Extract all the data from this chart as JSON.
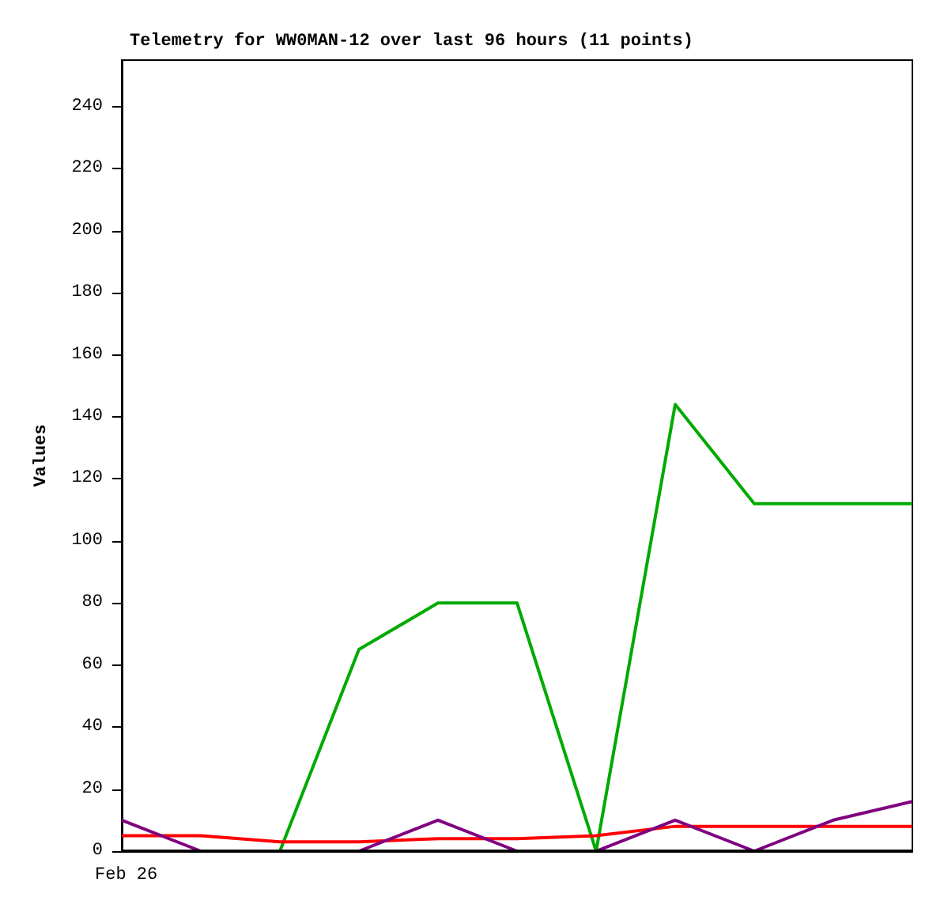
{
  "chart_data": {
    "type": "line",
    "title": "Telemetry for WW0MAN-12 over last 96 hours (11 points)",
    "ylabel": "Values",
    "categories": [
      null,
      null,
      null,
      null,
      null,
      null,
      null,
      null,
      null,
      null,
      null
    ],
    "series": [
      {
        "color": "#00aa00",
        "values": [
          0,
          0,
          0,
          65,
          80,
          80,
          0,
          144,
          112,
          112,
          112
        ]
      },
      {
        "color": "#ff0000",
        "values": [
          5,
          5,
          3,
          3,
          4,
          4,
          5,
          8,
          8,
          8,
          8
        ]
      },
      {
        "color": "#800080",
        "values": [
          10,
          0,
          0,
          0,
          10,
          0,
          0,
          10,
          0,
          10,
          16
        ]
      },
      {
        "color": "#000000",
        "values": [
          0,
          0,
          0,
          0,
          0,
          0,
          0,
          0,
          0,
          0,
          0
        ]
      }
    ],
    "annotations": [
      "Feb 26"
    ],
    "ylim": [
      0,
      255
    ],
    "yticks": [
      0,
      20,
      40,
      60,
      80,
      100,
      120,
      140,
      160,
      180,
      200,
      220,
      240
    ],
    "grid": false,
    "marker": "none",
    "line_style": "solid"
  }
}
